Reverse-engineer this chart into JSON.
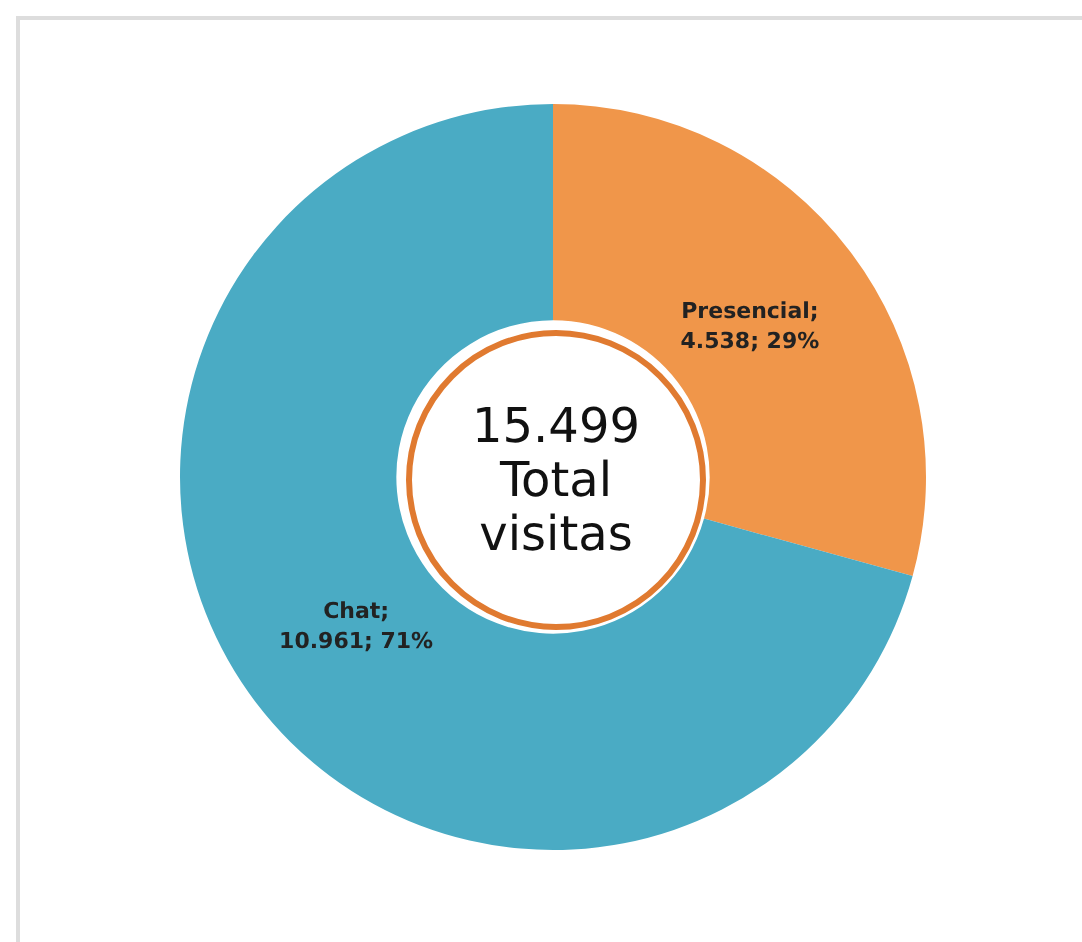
{
  "chart_data": {
    "type": "donut",
    "categories": [
      "Presencial",
      "Chat"
    ],
    "values": [
      4538,
      10961
    ],
    "colors": [
      "#f0964a",
      "#4aabc4"
    ],
    "value_labels": [
      ";\n4.538; 29%",
      ";\n10.961; 71%"
    ],
    "legend": false,
    "annotations": [
      "15.499\nTotal\nvisitas"
    ]
  }
}
